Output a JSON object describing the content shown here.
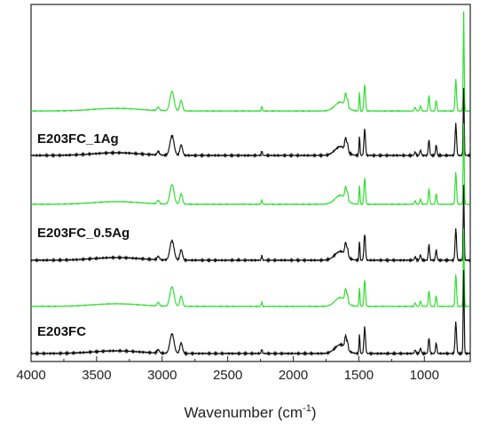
{
  "chart_data": {
    "type": "line",
    "title": "",
    "xlabel": "Wavenumber (cm",
    "xlabel_sup": "-1",
    "xlabel_end": ")",
    "ylabel": "",
    "xlim": [
      4000,
      650
    ],
    "x_reversed": true,
    "y_ticks_shown": false,
    "grid": false,
    "x_ticks": [
      "4000",
      "3500",
      "3000",
      "2500",
      "2000",
      "1500",
      "1000"
    ],
    "sample_labels": [
      "E203FC_1Ag",
      "E203FC_0.5Ag",
      "E203FC"
    ],
    "colors": {
      "black": "#111111",
      "green": "#33dd33"
    },
    "peaks_cm1": [
      3030,
      2925,
      2855,
      2240,
      1600,
      1490,
      1455,
      1070,
      1030,
      965,
      910,
      760,
      700
    ],
    "series": [
      {
        "group": "E203FC_1Ag",
        "color": "green",
        "trace": "upper"
      },
      {
        "group": "E203FC_1Ag",
        "color": "black",
        "trace": "lower"
      },
      {
        "group": "E203FC_0.5Ag",
        "color": "green",
        "trace": "upper"
      },
      {
        "group": "E203FC_0.5Ag",
        "color": "black",
        "trace": "lower"
      },
      {
        "group": "E203FC",
        "color": "green",
        "trace": "upper"
      },
      {
        "group": "E203FC",
        "color": "black",
        "trace": "lower"
      }
    ]
  }
}
